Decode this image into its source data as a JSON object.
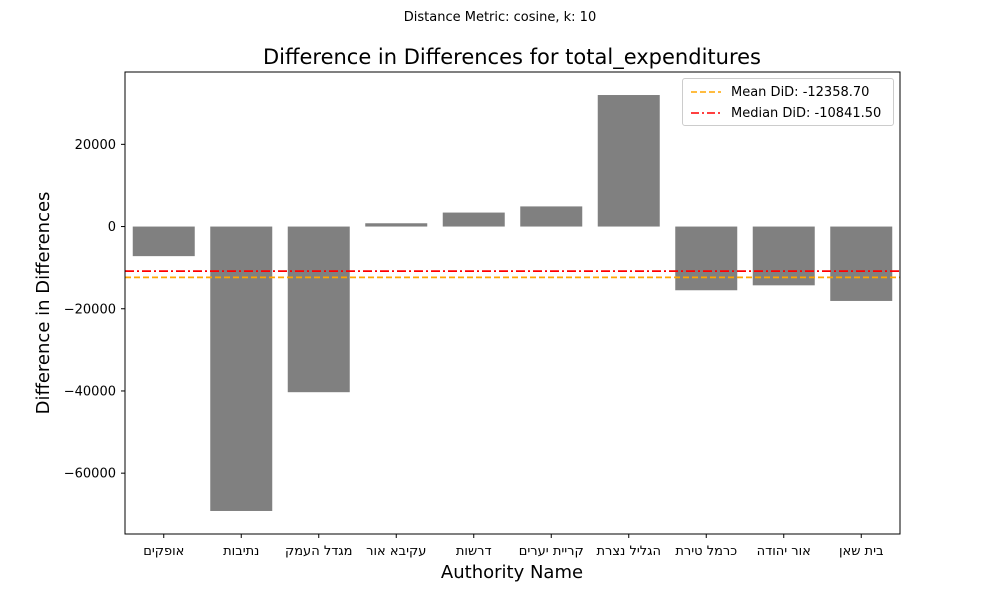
{
  "suptitle": "Distance Metric: cosine, k: 10",
  "chart_data": {
    "type": "bar",
    "title": "Difference in Differences for total_expenditures",
    "xlabel": "Authority Name",
    "ylabel": "Difference in Differences",
    "categories": [
      "אופקים",
      "נתיבות",
      "מגדל העמק",
      "עקיבא אור",
      "דרשות",
      "קריית יערים",
      "הגליל נצרת",
      "כרמל טירת",
      "אור יהודה",
      "בית שאן"
    ],
    "values": [
      -7200,
      -69200,
      -40300,
      800,
      3400,
      4900,
      32000,
      -15500,
      -14300,
      -18100
    ],
    "ylim": [
      -74800,
      37600
    ],
    "yticks": [
      -60000,
      -40000,
      -20000,
      0,
      20000
    ],
    "ytick_labels": [
      "−60000",
      "−40000",
      "−20000",
      "0",
      "20000"
    ],
    "bar_color": "#808080",
    "reference_lines": [
      {
        "label": "Mean DiD: -12358.70",
        "value": -12358.7,
        "color": "#ffa500",
        "style": "dashed"
      },
      {
        "label": "Median DiD: -10841.50",
        "value": -10841.5,
        "color": "#ff0000",
        "style": "dashdot"
      }
    ],
    "legend_position": "top-right",
    "grid": false
  }
}
